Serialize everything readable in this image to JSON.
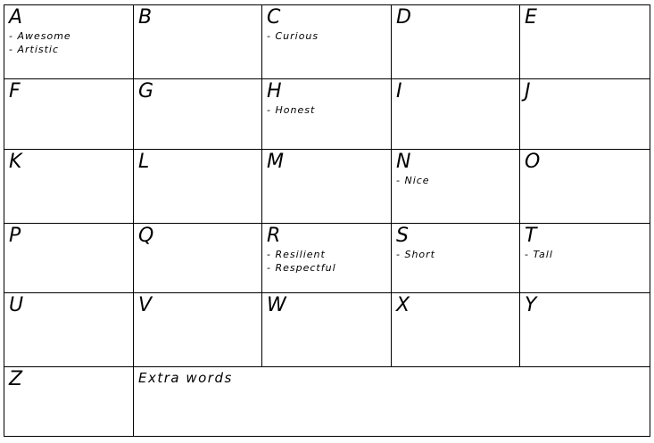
{
  "cells": [
    {
      "letter": "A",
      "words": [
        "- Awesome",
        "- Artistic"
      ]
    },
    {
      "letter": "B",
      "words": []
    },
    {
      "letter": "C",
      "words": [
        "- Curious"
      ]
    },
    {
      "letter": "D",
      "words": []
    },
    {
      "letter": "E",
      "words": []
    },
    {
      "letter": "F",
      "words": []
    },
    {
      "letter": "G",
      "words": []
    },
    {
      "letter": "H",
      "words": [
        "- Honest"
      ]
    },
    {
      "letter": "I",
      "words": []
    },
    {
      "letter": "J",
      "words": []
    },
    {
      "letter": "K",
      "words": []
    },
    {
      "letter": "L",
      "words": []
    },
    {
      "letter": "M",
      "words": []
    },
    {
      "letter": "N",
      "words": [
        "- Nice"
      ]
    },
    {
      "letter": "O",
      "words": []
    },
    {
      "letter": "P",
      "words": []
    },
    {
      "letter": "Q",
      "words": []
    },
    {
      "letter": "R",
      "words": [
        "- Resilient",
        "- Respectful"
      ]
    },
    {
      "letter": "S",
      "words": [
        "- Short"
      ]
    },
    {
      "letter": "T",
      "words": [
        "- Tall"
      ]
    },
    {
      "letter": "U",
      "words": []
    },
    {
      "letter": "V",
      "words": []
    },
    {
      "letter": "W",
      "words": []
    },
    {
      "letter": "X",
      "words": []
    },
    {
      "letter": "Y",
      "words": []
    },
    {
      "letter": "Z",
      "words": []
    }
  ],
  "extra": {
    "title": "Extra words"
  }
}
